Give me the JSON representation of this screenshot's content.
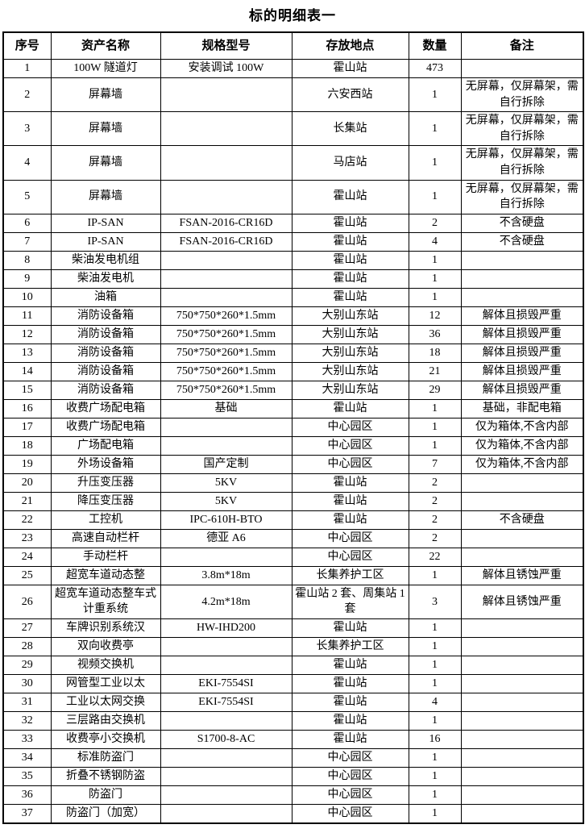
{
  "title": "标的明细表一",
  "table": {
    "headers": [
      "序号",
      "资产名称",
      "规格型号",
      "存放地点",
      "数量",
      "备注"
    ],
    "rows": [
      [
        "1",
        "100W 隧道灯",
        "安装调试 100W",
        "霍山站",
        "473",
        ""
      ],
      [
        "2",
        "屏幕墙",
        "",
        "六安西站",
        "1",
        "无屏幕，仅屏幕架，需自行拆除"
      ],
      [
        "3",
        "屏幕墙",
        "",
        "长集站",
        "1",
        "无屏幕，仅屏幕架，需自行拆除"
      ],
      [
        "4",
        "屏幕墙",
        "",
        "马店站",
        "1",
        "无屏幕，仅屏幕架，需自行拆除"
      ],
      [
        "5",
        "屏幕墙",
        "",
        "霍山站",
        "1",
        "无屏幕，仅屏幕架，需自行拆除"
      ],
      [
        "6",
        "IP-SAN",
        "FSAN-2016-CR16D",
        "霍山站",
        "2",
        "不含硬盘"
      ],
      [
        "7",
        "IP-SAN",
        "FSAN-2016-CR16D",
        "霍山站",
        "4",
        "不含硬盘"
      ],
      [
        "8",
        "柴油发电机组",
        "",
        "霍山站",
        "1",
        ""
      ],
      [
        "9",
        "柴油发电机",
        "",
        "霍山站",
        "1",
        ""
      ],
      [
        "10",
        "油箱",
        "",
        "霍山站",
        "1",
        ""
      ],
      [
        "11",
        "消防设备箱",
        "750*750*260*1.5mm",
        "大别山东站",
        "12",
        "解体且损毁严重"
      ],
      [
        "12",
        "消防设备箱",
        "750*750*260*1.5mm",
        "大别山东站",
        "36",
        "解体且损毁严重"
      ],
      [
        "13",
        "消防设备箱",
        "750*750*260*1.5mm",
        "大别山东站",
        "18",
        "解体且损毁严重"
      ],
      [
        "14",
        "消防设备箱",
        "750*750*260*1.5mm",
        "大别山东站",
        "21",
        "解体且损毁严重"
      ],
      [
        "15",
        "消防设备箱",
        "750*750*260*1.5mm",
        "大别山东站",
        "29",
        "解体且损毁严重"
      ],
      [
        "16",
        "收费广场配电箱",
        "基础",
        "霍山站",
        "1",
        "基础，非配电箱"
      ],
      [
        "17",
        "收费广场配电箱",
        "",
        "中心园区",
        "1",
        "仅为箱体,不含内部"
      ],
      [
        "18",
        "广场配电箱",
        "",
        "中心园区",
        "1",
        "仅为箱体,不含内部"
      ],
      [
        "19",
        "外场设备箱",
        "国产定制",
        "中心园区",
        "7",
        "仅为箱体,不含内部"
      ],
      [
        "20",
        "升压变压器",
        "5KV",
        "霍山站",
        "2",
        ""
      ],
      [
        "21",
        "降压变压器",
        "5KV",
        "霍山站",
        "2",
        ""
      ],
      [
        "22",
        "工控机",
        "IPC-610H-BTO",
        "霍山站",
        "2",
        "不含硬盘"
      ],
      [
        "23",
        "高速自动栏杆",
        "德亚 A6",
        "中心园区",
        "2",
        ""
      ],
      [
        "24",
        "手动栏杆",
        "",
        "中心园区",
        "22",
        ""
      ],
      [
        "25",
        "超宽车道动态整",
        "3.8m*18m",
        "长集养护工区",
        "1",
        "解体且锈蚀严重"
      ],
      [
        "26",
        "超宽车道动态整车式计重系统",
        "4.2m*18m",
        "霍山站 2 套、周集站 1 套",
        "3",
        "解体且锈蚀严重"
      ],
      [
        "27",
        "车牌识别系统汉",
        "HW-IHD200",
        "霍山站",
        "1",
        ""
      ],
      [
        "28",
        "双向收费亭",
        "",
        "长集养护工区",
        "1",
        ""
      ],
      [
        "29",
        "视频交换机",
        "",
        "霍山站",
        "1",
        ""
      ],
      [
        "30",
        "网管型工业以太",
        "EKI-7554SI",
        "霍山站",
        "1",
        ""
      ],
      [
        "31",
        "工业以太网交换",
        "EKI-7554SI",
        "霍山站",
        "4",
        ""
      ],
      [
        "32",
        "三层路由交换机",
        "",
        "霍山站",
        "1",
        ""
      ],
      [
        "33",
        "收费亭小交换机",
        "S1700-8-AC",
        "霍山站",
        "16",
        ""
      ],
      [
        "34",
        "标准防盗门",
        "",
        "中心园区",
        "1",
        ""
      ],
      [
        "35",
        "折叠不锈钢防盗",
        "",
        "中心园区",
        "1",
        ""
      ],
      [
        "36",
        "防盗门",
        "",
        "中心园区",
        "1",
        ""
      ],
      [
        "37",
        "防盗门（加宽）",
        "",
        "中心园区",
        "1",
        ""
      ]
    ]
  }
}
